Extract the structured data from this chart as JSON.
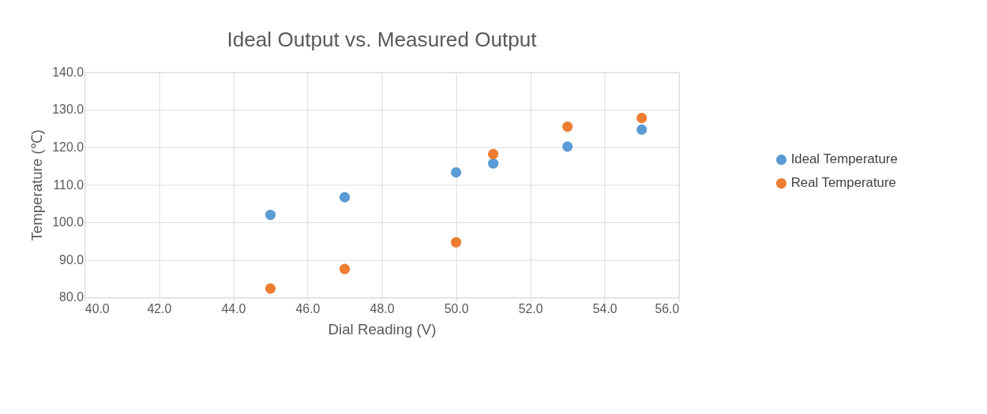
{
  "chart_data": {
    "type": "scatter",
    "title": "Ideal Output vs. Measured Output",
    "xlabel": "Dial Reading (V)",
    "ylabel": "Temperature (℃)",
    "x": [
      45,
      47,
      50,
      51,
      53,
      55
    ],
    "series": [
      {
        "name": "Ideal Temperature",
        "color": "#5b9bd5",
        "values": [
          102.0,
          106.7,
          113.3,
          115.7,
          120.2,
          124.7
        ]
      },
      {
        "name": "Real Temperature",
        "color": "#ed7d31",
        "values": [
          82.4,
          87.6,
          94.7,
          118.2,
          125.5,
          127.8
        ]
      }
    ],
    "xlim": [
      40,
      56
    ],
    "xticks": [
      {
        "value": 40,
        "label": "40.0"
      },
      {
        "value": 42,
        "label": "42.0"
      },
      {
        "value": 44,
        "label": "44.0"
      },
      {
        "value": 46,
        "label": "46.0"
      },
      {
        "value": 48,
        "label": "48.0"
      },
      {
        "value": 50,
        "label": "50.0"
      },
      {
        "value": 52,
        "label": "52.0"
      },
      {
        "value": 54,
        "label": "54.0"
      },
      {
        "value": 56,
        "label": "56.0"
      }
    ],
    "ylim": [
      80,
      140
    ],
    "yticks": [
      {
        "value": 80,
        "label": "80.0"
      },
      {
        "value": 90,
        "label": "90.0"
      },
      {
        "value": 100,
        "label": "100.0"
      },
      {
        "value": 110,
        "label": "110.0"
      },
      {
        "value": 120,
        "label": "120.0"
      },
      {
        "value": 130,
        "label": "130.0"
      },
      {
        "value": 140,
        "label": "140.0"
      }
    ],
    "grid": true,
    "legend": "right",
    "marker": "circle"
  }
}
